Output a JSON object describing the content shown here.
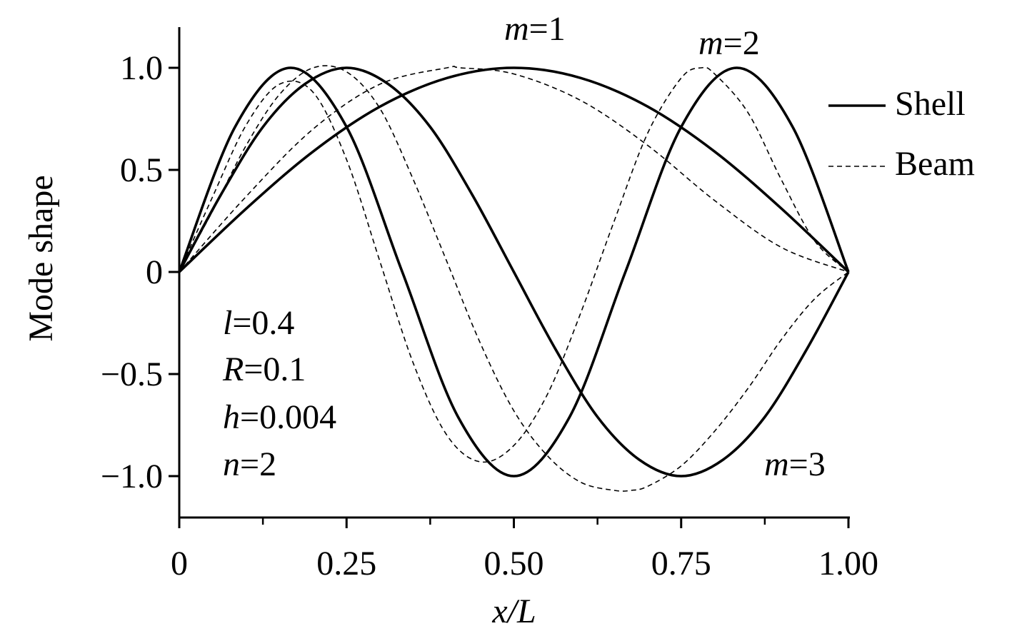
{
  "chart_data": {
    "type": "line",
    "xlabel": "x/L",
    "ylabel": "Mode shape",
    "xlim": [
      0,
      1.0
    ],
    "ylim": [
      -1.2,
      1.2
    ],
    "x_ticks": [
      0,
      0.25,
      0.5,
      0.75,
      1.0
    ],
    "x_tick_labels": [
      "0",
      "0.25",
      "0.50",
      "0.75",
      "1.00"
    ],
    "x_minor_ticks": [
      0.125,
      0.375,
      0.625,
      0.875
    ],
    "y_ticks": [
      -1.0,
      -0.5,
      0,
      0.5,
      1.0
    ],
    "y_tick_labels": [
      "−1.0",
      "−0.5",
      "0",
      "0.5",
      "1.0"
    ],
    "grid": false,
    "legend_position": "top-right",
    "legend": [
      {
        "label": "Shell",
        "style": "solid"
      },
      {
        "label": "Beam",
        "style": "dashed"
      }
    ],
    "series": [
      {
        "mode": "m=1",
        "model": "Shell",
        "style": "solid",
        "x": [
          0,
          0.1,
          0.2,
          0.3,
          0.4,
          0.5,
          0.6,
          0.7,
          0.8,
          0.9,
          1.0
        ],
        "y": [
          0,
          0.31,
          0.59,
          0.81,
          0.95,
          1.0,
          0.95,
          0.81,
          0.59,
          0.31,
          0
        ]
      },
      {
        "mode": "m=2",
        "model": "Shell",
        "style": "solid",
        "x": [
          0,
          0.0833,
          0.1667,
          0.25,
          0.3333,
          0.4167,
          0.5,
          0.5833,
          0.6667,
          0.75,
          0.8333,
          0.9167,
          1.0
        ],
        "y": [
          0,
          0.71,
          1.0,
          0.71,
          0,
          -0.71,
          -1.0,
          -0.71,
          0,
          0.71,
          1.0,
          0.71,
          0
        ]
      },
      {
        "mode": "m=3",
        "model": "Shell",
        "style": "solid",
        "x": [
          0,
          0.0625,
          0.125,
          0.1875,
          0.25,
          0.3125,
          0.375,
          0.4375,
          0.5,
          0.5625,
          0.625,
          0.6875,
          0.75,
          0.8125,
          0.875,
          0.9375,
          1.0
        ],
        "y": [
          0,
          0.38,
          0.71,
          0.92,
          1.0,
          0.92,
          0.71,
          0.38,
          0,
          -0.38,
          -0.71,
          -0.92,
          -1.0,
          -0.92,
          -0.71,
          -0.38,
          0
        ]
      },
      {
        "mode": "m=1",
        "model": "Beam",
        "style": "dashed",
        "x": [
          0,
          0.1,
          0.2,
          0.3,
          0.4,
          0.42,
          0.5,
          0.6,
          0.7,
          0.8,
          0.9,
          1.0
        ],
        "y": [
          0,
          0.37,
          0.7,
          0.92,
          1.0,
          1.0,
          0.97,
          0.84,
          0.62,
          0.35,
          0.12,
          0
        ]
      },
      {
        "mode": "m=2",
        "model": "Beam",
        "style": "dashed",
        "x": [
          0,
          0.05,
          0.1,
          0.15,
          0.2,
          0.25,
          0.3,
          0.35,
          0.4,
          0.45,
          0.5,
          0.55,
          0.6,
          0.65,
          0.7,
          0.75,
          0.78,
          0.8,
          0.85,
          0.9,
          0.95,
          1.0
        ],
        "y": [
          0,
          0.37,
          0.72,
          0.92,
          0.88,
          0.55,
          0.05,
          -0.45,
          -0.8,
          -0.93,
          -0.85,
          -0.6,
          -0.2,
          0.25,
          0.68,
          0.95,
          1.0,
          0.97,
          0.78,
          0.45,
          0.15,
          0
        ]
      },
      {
        "mode": "m=3",
        "model": "Beam",
        "style": "dashed",
        "x": [
          0,
          0.05,
          0.1,
          0.15,
          0.2,
          0.25,
          0.3,
          0.35,
          0.4,
          0.45,
          0.5,
          0.55,
          0.6,
          0.65,
          0.675,
          0.7,
          0.75,
          0.8,
          0.85,
          0.9,
          0.95,
          1.0
        ],
        "y": [
          0,
          0.3,
          0.62,
          0.87,
          1.0,
          0.98,
          0.8,
          0.45,
          0.05,
          -0.35,
          -0.68,
          -0.9,
          -1.03,
          -1.07,
          -1.07,
          -1.05,
          -0.95,
          -0.78,
          -0.57,
          -0.33,
          -0.13,
          0
        ]
      }
    ],
    "annotations": {
      "m1": {
        "var": "m",
        "rest": "=1"
      },
      "m2": {
        "var": "m",
        "rest": "=2"
      },
      "m3": {
        "var": "m",
        "rest": "=3"
      }
    },
    "parameters": [
      {
        "var": "l",
        "rest": "=0.4"
      },
      {
        "var": "R",
        "rest": "=0.1"
      },
      {
        "var": "h",
        "rest": "=0.004"
      },
      {
        "var": "n",
        "rest": "=2"
      }
    ]
  }
}
